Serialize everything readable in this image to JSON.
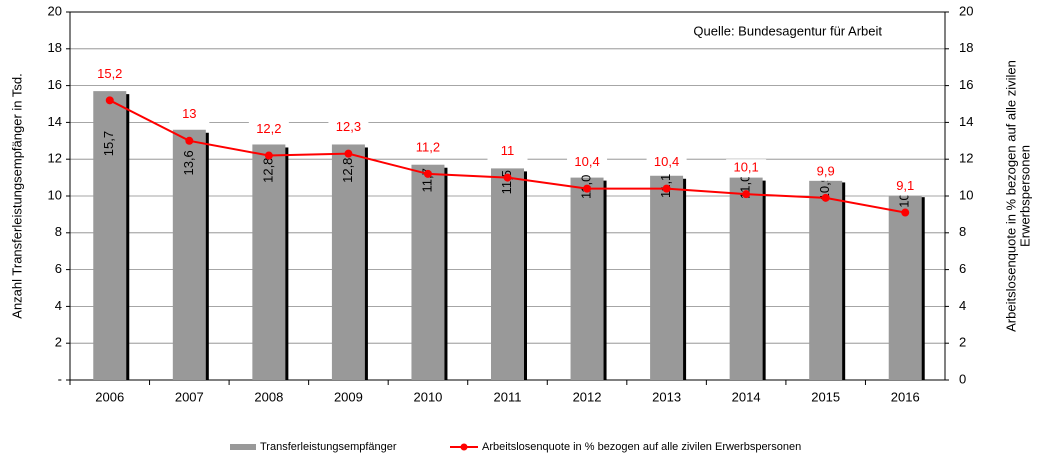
{
  "chart_data": {
    "type": "bar-line",
    "annotation": "Quelle: Bundesagentur für Arbeit",
    "ylabel": "Anzahl Transferleistungsempfänger in Tsd.",
    "y2label": [
      "Arbeitslosenquote in % bezogen auf alle zivilen",
      "Erwerbspersonen"
    ],
    "categories": [
      "2006",
      "2007",
      "2008",
      "2009",
      "2010",
      "2011",
      "2012",
      "2013",
      "2014",
      "2015",
      "2016"
    ],
    "series": [
      {
        "name": "Transferleistungsempfänger",
        "type": "bar",
        "color": "#999999",
        "shadow": "#000000",
        "values": [
          15.7,
          13.6,
          12.8,
          12.8,
          11.7,
          11.5,
          11.0,
          11.1,
          11.0,
          10.9,
          10.1
        ],
        "value_labels": [
          "15,7",
          "13,6",
          "12,8",
          "12,8",
          "11,7",
          "11,5",
          "11,0",
          "11,1",
          "11,0",
          "10,9",
          "10,1"
        ]
      },
      {
        "name": "Arbeitslosenquote in % bezogen auf alle zivilen Erwerbspersonen",
        "type": "line",
        "axis": "y2",
        "color": "#ff0000",
        "values": [
          15.2,
          13,
          12.2,
          12.3,
          11.2,
          11,
          10.4,
          10.4,
          10.1,
          9.9,
          9.1
        ],
        "value_labels": [
          "15,2",
          "13",
          "12,2",
          "12,3",
          "11,2",
          "11",
          "10,4",
          "10,4",
          "10,1",
          "9,9",
          "9,1"
        ]
      }
    ],
    "ylim": [
      0,
      20
    ],
    "yticks": [
      {
        "value": 0,
        "label": "-"
      },
      2,
      4,
      6,
      8,
      10,
      12,
      14,
      16,
      18,
      20
    ],
    "y2lim": [
      0,
      20
    ],
    "y2ticks": [
      0,
      2,
      4,
      6,
      8,
      10,
      12,
      14,
      16,
      18,
      20
    ],
    "grid": true,
    "legend": "bottom"
  }
}
